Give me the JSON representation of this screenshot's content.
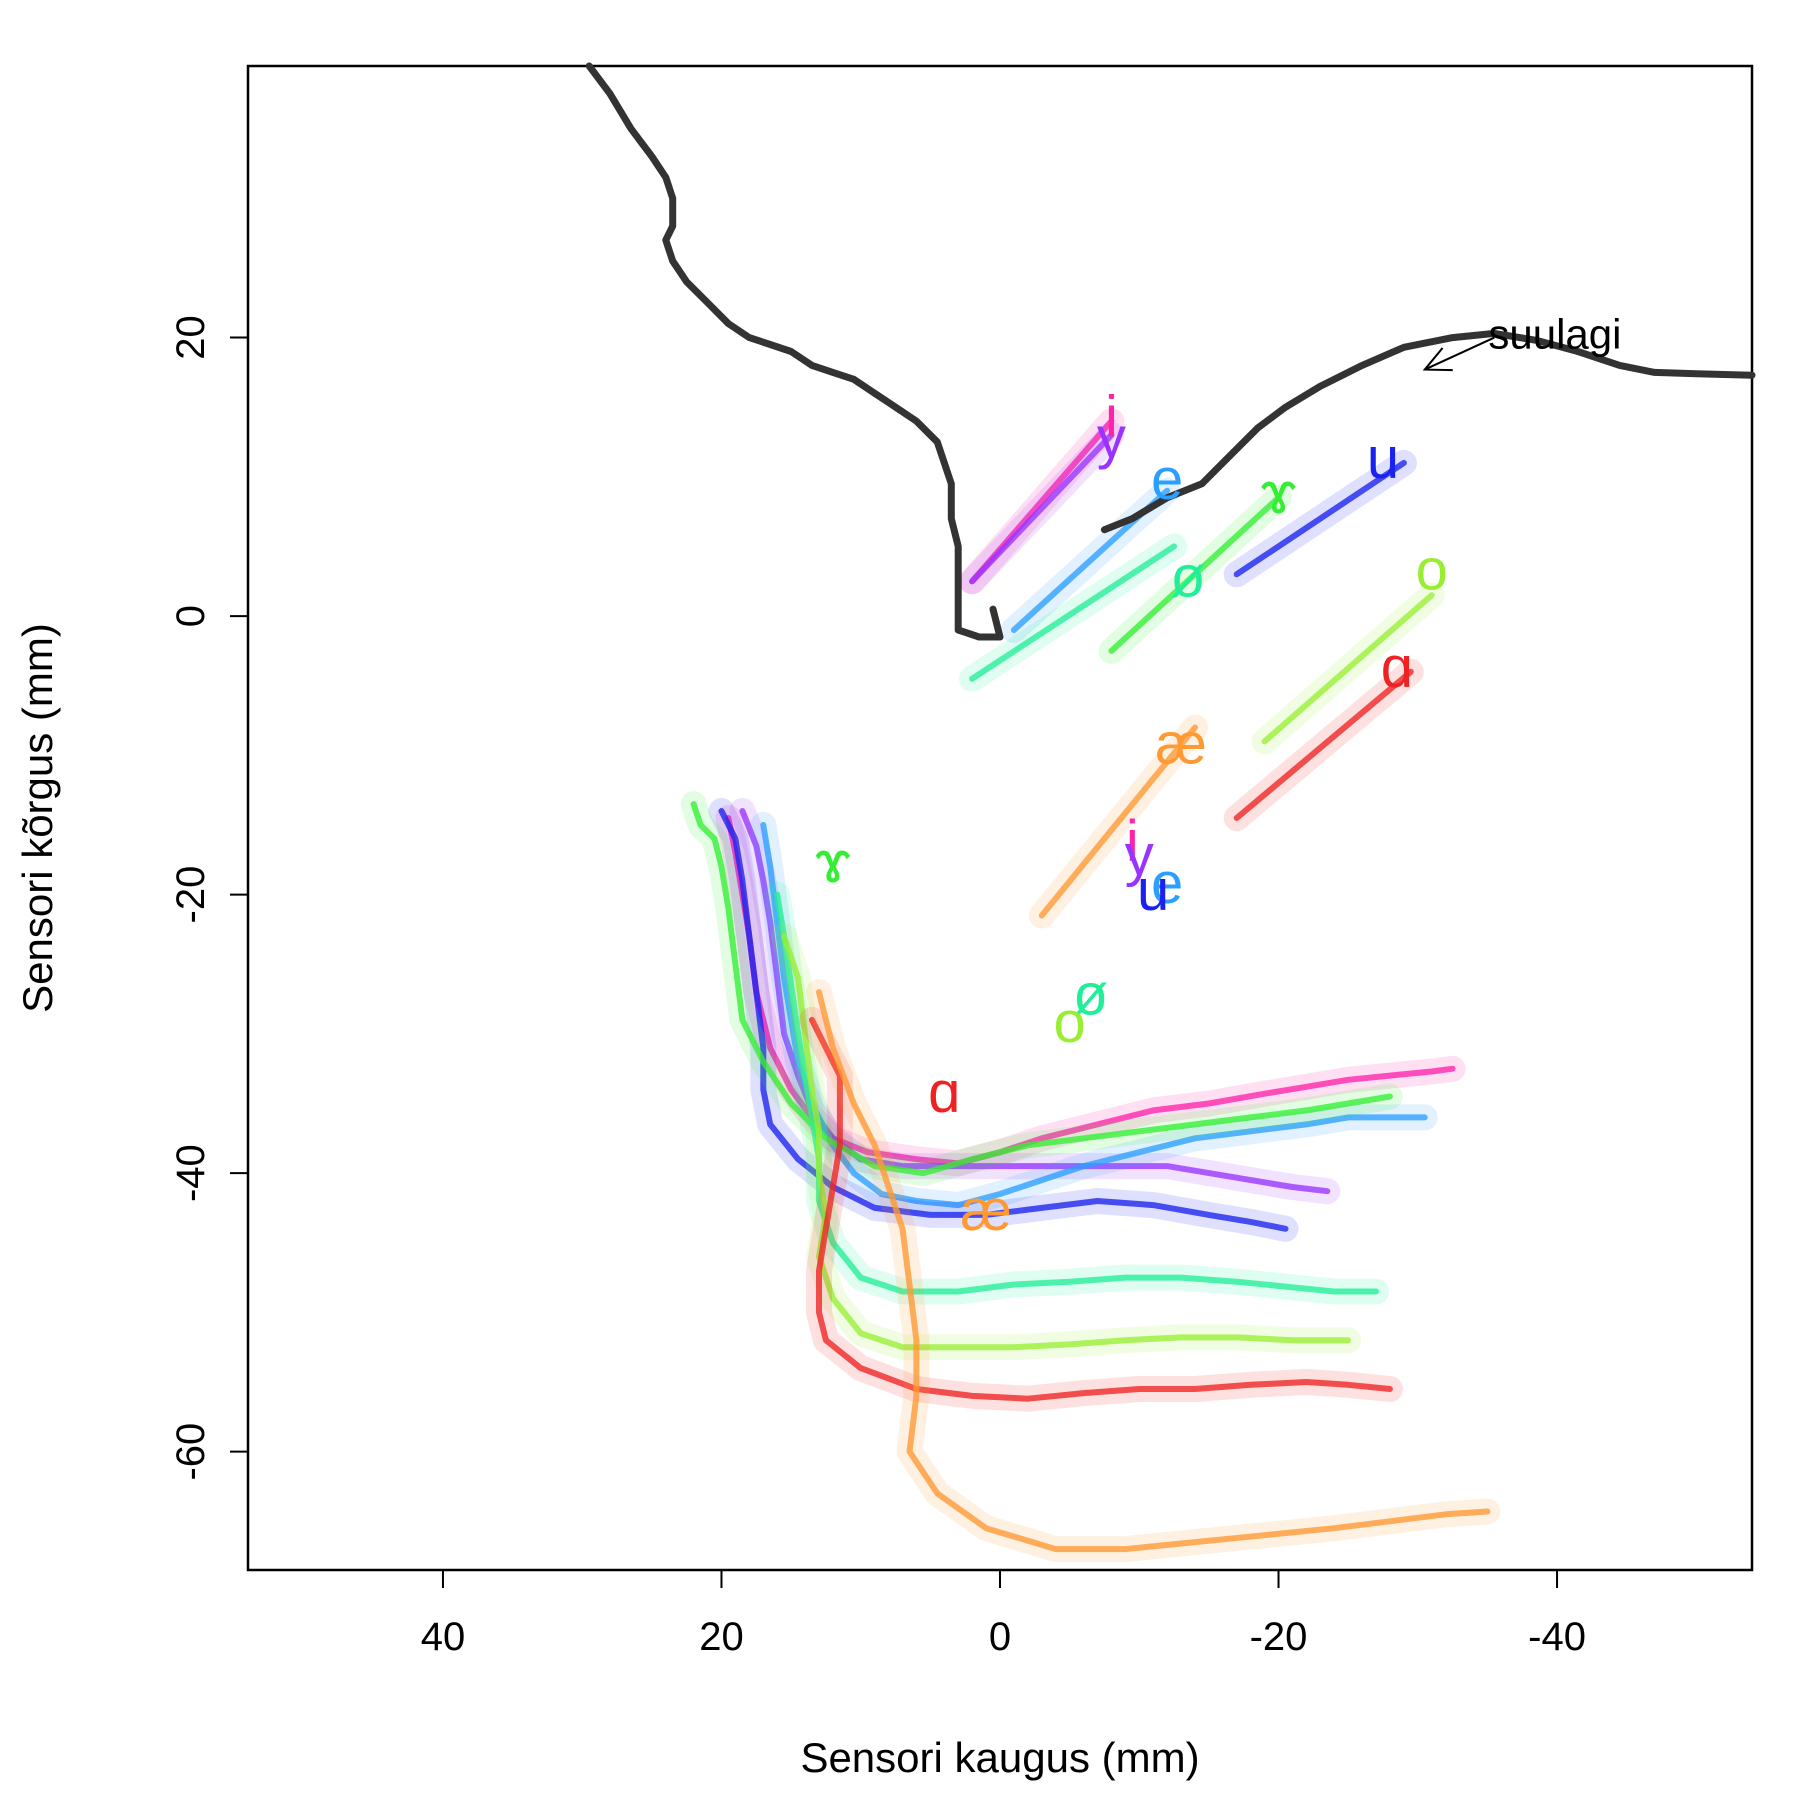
{
  "chart_data": {
    "type": "line",
    "xlabel": "Sensori kaugus (mm)",
    "ylabel": "Sensori kõrgus (mm)",
    "xlim": [
      54,
      -54
    ],
    "ylim": [
      -68.5,
      39.5
    ],
    "x_reversed": true,
    "x_ticks": [
      40,
      20,
      0,
      -20,
      -40
    ],
    "y_ticks": [
      -60,
      -40,
      -20,
      0,
      20
    ],
    "grid": false,
    "palate": {
      "label": "suulagi",
      "label_position": [
        -35.5,
        20
      ],
      "arrow_from": [
        -35.5,
        20
      ],
      "arrow_to": [
        -30.5,
        17.7
      ],
      "color": "#333333",
      "points": [
        [
          -7.5,
          6.2
        ],
        [
          -9.5,
          7
        ],
        [
          -12,
          8.5
        ],
        [
          -14.5,
          9.5
        ],
        [
          -16.5,
          11.5
        ],
        [
          -18.5,
          13.5
        ],
        [
          -20.5,
          15
        ],
        [
          -23,
          16.5
        ],
        [
          -26,
          18
        ],
        [
          -29,
          19.3
        ],
        [
          -32.5,
          20
        ],
        [
          -35.5,
          20.3
        ],
        [
          -38.5,
          19.8
        ],
        [
          -41.5,
          19
        ],
        [
          -44.5,
          18
        ],
        [
          -47,
          17.5
        ],
        [
          -50,
          17.4
        ],
        [
          -54,
          17.3
        ]
      ]
    },
    "pharynx_wall": {
      "color": "#333333",
      "points": [
        [
          29.5,
          39.5
        ],
        [
          28,
          37.5
        ],
        [
          26.5,
          35
        ],
        [
          25,
          33
        ],
        [
          24,
          31.5
        ],
        [
          23.5,
          30
        ],
        [
          23.5,
          28
        ],
        [
          24,
          27
        ],
        [
          23.5,
          25.5
        ],
        [
          22.5,
          24
        ],
        [
          21,
          22.5
        ],
        [
          19.5,
          21
        ],
        [
          18,
          20
        ],
        [
          16.5,
          19.5
        ],
        [
          15,
          19
        ],
        [
          13.5,
          18
        ],
        [
          12,
          17.5
        ],
        [
          10.5,
          17
        ],
        [
          9,
          16
        ],
        [
          7.5,
          15
        ],
        [
          6,
          14
        ],
        [
          4.5,
          12.5
        ],
        [
          4,
          11
        ],
        [
          3.5,
          9.5
        ],
        [
          3.5,
          7
        ],
        [
          3,
          5
        ],
        [
          3,
          3
        ],
        [
          3,
          1
        ],
        [
          3,
          -1
        ],
        [
          1.5,
          -1.5
        ],
        [
          0.5,
          -1.5
        ],
        [
          0,
          -1.5
        ],
        [
          0.5,
          0.5
        ]
      ]
    },
    "series": [
      {
        "label": "i",
        "color": "#ff22aa",
        "label_upper": [
          -8,
          14
        ],
        "label_lower": [
          -9.5,
          -16.5
        ],
        "upper": [
          [
            2,
            2.5
          ],
          [
            -8,
            14
          ]
        ],
        "tongue": [
          [
            19.5,
            -14.5
          ],
          [
            19,
            -17
          ],
          [
            18.5,
            -20
          ],
          [
            18,
            -23
          ],
          [
            17.5,
            -27
          ],
          [
            16.5,
            -31
          ],
          [
            15,
            -34
          ],
          [
            13.5,
            -36
          ],
          [
            12,
            -37.5
          ],
          [
            9.5,
            -38.5
          ],
          [
            6,
            -39
          ],
          [
            3,
            -39.3
          ],
          [
            0,
            -38.5
          ],
          [
            -3,
            -37.5
          ],
          [
            -7,
            -36.5
          ],
          [
            -11,
            -35.5
          ],
          [
            -15,
            -35
          ],
          [
            -19,
            -34.3
          ],
          [
            -22,
            -33.8
          ],
          [
            -25,
            -33.3
          ],
          [
            -28,
            -33
          ],
          [
            -31,
            -32.7
          ],
          [
            -32.5,
            -32.5
          ]
        ]
      },
      {
        "label": "y",
        "color": "#9933ff",
        "label_upper": [
          -8,
          12.5
        ],
        "label_lower": [
          -10,
          -17.5
        ],
        "upper": [
          [
            2,
            2.5
          ],
          [
            -8,
            13
          ]
        ],
        "tongue": [
          [
            18.5,
            -14
          ],
          [
            17.5,
            -16.5
          ],
          [
            17,
            -19
          ],
          [
            16.5,
            -22
          ],
          [
            16,
            -26
          ],
          [
            15.5,
            -30
          ],
          [
            14.5,
            -33
          ],
          [
            13.5,
            -35.5
          ],
          [
            12,
            -37.5
          ],
          [
            10,
            -39
          ],
          [
            7,
            -39.5
          ],
          [
            3,
            -39.5
          ],
          [
            -1,
            -39.5
          ],
          [
            -5,
            -39.5
          ],
          [
            -9,
            -39.5
          ],
          [
            -12,
            -39.5
          ],
          [
            -15,
            -40
          ],
          [
            -18,
            -40.5
          ],
          [
            -21,
            -41
          ],
          [
            -23.5,
            -41.3
          ]
        ]
      },
      {
        "label": "e",
        "color": "#2b9fff",
        "label_upper": [
          -12,
          9.5
        ],
        "label_lower": [
          -12,
          -19.5
        ],
        "upper": [
          [
            -1,
            -1
          ],
          [
            -12,
            9
          ]
        ],
        "tongue": [
          [
            17,
            -15
          ],
          [
            16.5,
            -18
          ],
          [
            16,
            -22
          ],
          [
            15.5,
            -26
          ],
          [
            15,
            -29
          ],
          [
            14.5,
            -32
          ],
          [
            13.5,
            -35
          ],
          [
            12,
            -38
          ],
          [
            10.5,
            -40
          ],
          [
            8.5,
            -41.5
          ],
          [
            6,
            -42
          ],
          [
            3,
            -42.3
          ],
          [
            0,
            -41.5
          ],
          [
            -3,
            -40.5
          ],
          [
            -6,
            -39.5
          ],
          [
            -10,
            -38.5
          ],
          [
            -14,
            -37.5
          ],
          [
            -18,
            -37
          ],
          [
            -22,
            -36.5
          ],
          [
            -25,
            -36
          ],
          [
            -28,
            -36
          ],
          [
            -30.5,
            -36
          ]
        ]
      },
      {
        "label": "u",
        "color": "#1a22ee",
        "label_upper": [
          -27.5,
          11
        ],
        "label_lower": [
          -11,
          -20
        ],
        "upper": [
          [
            -17,
            3
          ],
          [
            -29,
            11
          ]
        ],
        "tongue": [
          [
            20,
            -14
          ],
          [
            19,
            -16
          ],
          [
            18.5,
            -19
          ],
          [
            18,
            -23
          ],
          [
            17.5,
            -27
          ],
          [
            17,
            -31
          ],
          [
            17,
            -34
          ],
          [
            16.5,
            -36.5
          ],
          [
            14.5,
            -39
          ],
          [
            12,
            -41
          ],
          [
            9,
            -42.5
          ],
          [
            5,
            -43
          ],
          [
            1,
            -43
          ],
          [
            -3,
            -42.5
          ],
          [
            -7,
            -42
          ],
          [
            -11,
            -42.3
          ],
          [
            -15,
            -43
          ],
          [
            -18,
            -43.5
          ],
          [
            -20.5,
            -44
          ]
        ]
      },
      {
        "label": "ɤ",
        "color": "#33ee33",
        "label_upper": [
          -20,
          8.5
        ],
        "label_lower": [
          12,
          -18
        ],
        "upper": [
          [
            -8,
            -2.5
          ],
          [
            -20,
            8.5
          ]
        ],
        "tongue": [
          [
            22,
            -13.5
          ],
          [
            21.5,
            -15
          ],
          [
            20.5,
            -16
          ],
          [
            20,
            -18
          ],
          [
            19.5,
            -21
          ],
          [
            19,
            -25
          ],
          [
            18.5,
            -29
          ],
          [
            17,
            -32
          ],
          [
            15,
            -35
          ],
          [
            12.5,
            -37.5
          ],
          [
            9,
            -39.5
          ],
          [
            5.5,
            -40
          ],
          [
            2,
            -39
          ],
          [
            -2,
            -38
          ],
          [
            -6,
            -37.5
          ],
          [
            -10,
            -37
          ],
          [
            -14,
            -36.5
          ],
          [
            -18,
            -36
          ],
          [
            -22,
            -35.5
          ],
          [
            -25,
            -35
          ],
          [
            -28,
            -34.5
          ]
        ]
      },
      {
        "label": "ø",
        "color": "#22ee99",
        "label_upper": [
          -13.5,
          2.5
        ],
        "label_lower": [
          -6.5,
          -27.5
        ],
        "upper": [
          [
            2,
            -4.5
          ],
          [
            -12.5,
            5
          ]
        ],
        "tongue": [
          [
            16,
            -20
          ],
          [
            15.5,
            -23
          ],
          [
            15,
            -26.5
          ],
          [
            14.5,
            -30
          ],
          [
            14,
            -33
          ],
          [
            13.5,
            -36
          ],
          [
            13,
            -39
          ],
          [
            13,
            -42
          ],
          [
            12,
            -45
          ],
          [
            10,
            -47.5
          ],
          [
            7,
            -48.5
          ],
          [
            3,
            -48.5
          ],
          [
            -1,
            -48
          ],
          [
            -5,
            -47.8
          ],
          [
            -9,
            -47.5
          ],
          [
            -13,
            -47.5
          ],
          [
            -17,
            -47.8
          ],
          [
            -21,
            -48.2
          ],
          [
            -24,
            -48.5
          ],
          [
            -27,
            -48.5
          ]
        ]
      },
      {
        "label": "o",
        "color": "#99ee33",
        "label_upper": [
          -31,
          3
        ],
        "label_lower": [
          -5,
          -29.5
        ],
        "upper": [
          [
            -19,
            -9
          ],
          [
            -31,
            1.5
          ]
        ],
        "tongue": [
          [
            15.5,
            -23
          ],
          [
            14.5,
            -26
          ],
          [
            14,
            -30
          ],
          [
            13.5,
            -34
          ],
          [
            13,
            -37
          ],
          [
            13,
            -40
          ],
          [
            12.5,
            -43
          ],
          [
            13,
            -46
          ],
          [
            12,
            -49
          ],
          [
            10,
            -51.5
          ],
          [
            7,
            -52.5
          ],
          [
            3,
            -52.5
          ],
          [
            -1,
            -52.5
          ],
          [
            -5,
            -52.3
          ],
          [
            -9,
            -52
          ],
          [
            -13,
            -51.8
          ],
          [
            -17,
            -51.8
          ],
          [
            -21,
            -52
          ],
          [
            -25,
            -52
          ]
        ]
      },
      {
        "label": "ɑ",
        "color": "#ee2222",
        "label_upper": [
          -28.5,
          -4
        ],
        "label_lower": [
          4,
          -34.5
        ],
        "upper": [
          [
            -17,
            -14.5
          ],
          [
            -29.5,
            -4
          ]
        ],
        "tongue": [
          [
            13.5,
            -29
          ],
          [
            12.5,
            -31
          ],
          [
            11.5,
            -33
          ],
          [
            11.5,
            -35
          ],
          [
            11.5,
            -38
          ],
          [
            12,
            -41
          ],
          [
            12.5,
            -44
          ],
          [
            13,
            -47
          ],
          [
            13,
            -50
          ],
          [
            12.5,
            -52
          ],
          [
            10,
            -54
          ],
          [
            6,
            -55.5
          ],
          [
            2,
            -56
          ],
          [
            -2,
            -56.2
          ],
          [
            -6,
            -55.8
          ],
          [
            -10,
            -55.5
          ],
          [
            -14,
            -55.5
          ],
          [
            -18,
            -55.2
          ],
          [
            -22,
            -55
          ],
          [
            -25,
            -55.2
          ],
          [
            -28,
            -55.5
          ]
        ]
      },
      {
        "label": "æ",
        "color": "#ff9933",
        "label_upper": [
          -13,
          -9.5
        ],
        "label_lower": [
          1,
          -43
        ],
        "upper": [
          [
            -3,
            -21.5
          ],
          [
            -14,
            -8
          ]
        ],
        "tongue": [
          [
            13,
            -27
          ],
          [
            12,
            -31
          ],
          [
            10.5,
            -35
          ],
          [
            9,
            -38
          ],
          [
            8,
            -41
          ],
          [
            7,
            -44
          ],
          [
            6.5,
            -48
          ],
          [
            6,
            -52
          ],
          [
            6,
            -56
          ],
          [
            6.5,
            -60
          ],
          [
            4.5,
            -63
          ],
          [
            1,
            -65.5
          ],
          [
            -4,
            -67
          ],
          [
            -9,
            -67
          ],
          [
            -14,
            -66.5
          ],
          [
            -19,
            -66
          ],
          [
            -24,
            -65.5
          ],
          [
            -28,
            -65
          ],
          [
            -32,
            -64.5
          ],
          [
            -35,
            -64.3
          ]
        ]
      }
    ]
  }
}
